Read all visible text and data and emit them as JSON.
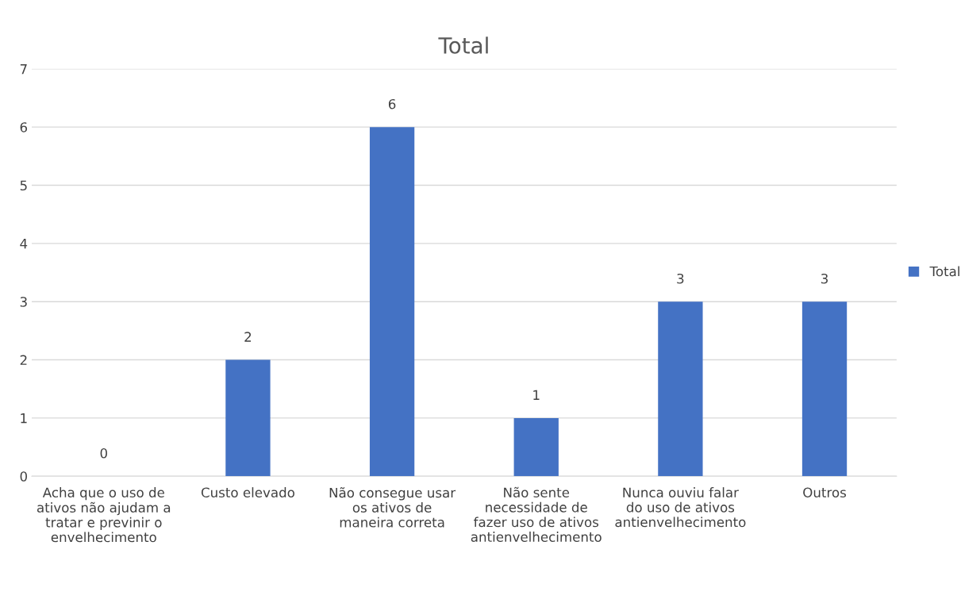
{
  "chart_data": {
    "type": "bar",
    "title": "Total",
    "categories": [
      "Acha que o uso de ativos não ajudam a tratar e previnir o envelhecimento",
      "Custo elevado",
      "Não consegue usar os ativos de maneira correta",
      "Não sente necessidade de fazer uso de ativos antienvelhecimento",
      "Nunca ouviu falar do uso de ativos antienvelhecimento",
      "Outros"
    ],
    "series": [
      {
        "name": "Total",
        "color": "#4472c4",
        "values": [
          0,
          2,
          6,
          1,
          3,
          3
        ]
      }
    ],
    "ylim": [
      0,
      7
    ],
    "yticks": [
      0,
      1,
      2,
      3,
      4,
      5,
      6,
      7
    ],
    "grid": "y",
    "legend": "right",
    "data_labels": true
  }
}
